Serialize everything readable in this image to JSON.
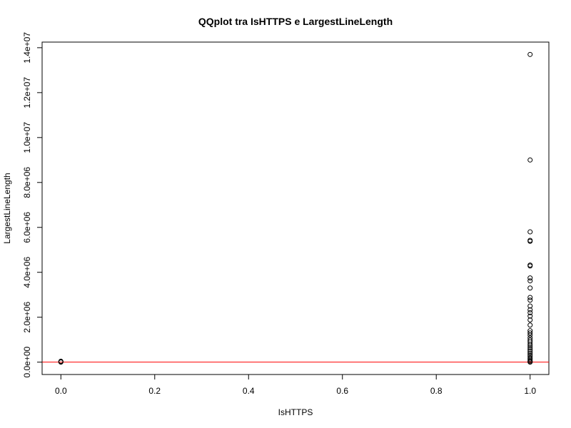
{
  "chart_data": {
    "type": "scatter",
    "title": "QQplot tra IsHTTPS e LargestLineLength",
    "xlabel": "IsHTTPS",
    "ylabel": "LargestLineLength",
    "xlim": [
      -0.04,
      1.04
    ],
    "ylim": [
      -550000,
      14250000
    ],
    "x_ticks": [
      0.0,
      0.2,
      0.4,
      0.6,
      0.8,
      1.0
    ],
    "x_tick_labels": [
      "0.0",
      "0.2",
      "0.4",
      "0.6",
      "0.8",
      "1.0"
    ],
    "y_ticks": [
      0,
      2000000,
      4000000,
      6000000,
      8000000,
      10000000,
      12000000,
      14000000
    ],
    "y_tick_labels": [
      "0.0e+00",
      "2.0e+06",
      "4.0e+06",
      "6.0e+06",
      "8.0e+06",
      "1.0e+07",
      "1.2e+07",
      "1.4e+07"
    ],
    "grid": false,
    "reference_line": {
      "y": 0,
      "color": "#ff0000"
    },
    "points": [
      {
        "x": 0,
        "y": 0
      },
      {
        "x": 0,
        "y": 20000
      },
      {
        "x": 0,
        "y": 40000
      },
      {
        "x": 1,
        "y": 13700000
      },
      {
        "x": 1,
        "y": 9000000
      },
      {
        "x": 1,
        "y": 5800000
      },
      {
        "x": 1,
        "y": 5420000
      },
      {
        "x": 1,
        "y": 5380000
      },
      {
        "x": 1,
        "y": 4320000
      },
      {
        "x": 1,
        "y": 4280000
      },
      {
        "x": 1,
        "y": 3750000
      },
      {
        "x": 1,
        "y": 3620000
      },
      {
        "x": 1,
        "y": 3300000
      },
      {
        "x": 1,
        "y": 2880000
      },
      {
        "x": 1,
        "y": 2760000
      },
      {
        "x": 1,
        "y": 2500000
      },
      {
        "x": 1,
        "y": 2330000
      },
      {
        "x": 1,
        "y": 2200000
      },
      {
        "x": 1,
        "y": 2050000
      },
      {
        "x": 1,
        "y": 1880000
      },
      {
        "x": 1,
        "y": 1650000
      },
      {
        "x": 1,
        "y": 1400000
      },
      {
        "x": 1,
        "y": 1300000
      },
      {
        "x": 1,
        "y": 1200000
      },
      {
        "x": 1,
        "y": 1080000
      },
      {
        "x": 1,
        "y": 980000
      },
      {
        "x": 1,
        "y": 900000
      },
      {
        "x": 1,
        "y": 800000
      },
      {
        "x": 1,
        "y": 720000
      },
      {
        "x": 1,
        "y": 640000
      },
      {
        "x": 1,
        "y": 560000
      },
      {
        "x": 1,
        "y": 480000
      },
      {
        "x": 1,
        "y": 400000
      },
      {
        "x": 1,
        "y": 320000
      },
      {
        "x": 1,
        "y": 250000
      },
      {
        "x": 1,
        "y": 180000
      },
      {
        "x": 1,
        "y": 120000
      },
      {
        "x": 1,
        "y": 60000
      },
      {
        "x": 1,
        "y": 20000
      },
      {
        "x": 1,
        "y": 0
      }
    ]
  }
}
